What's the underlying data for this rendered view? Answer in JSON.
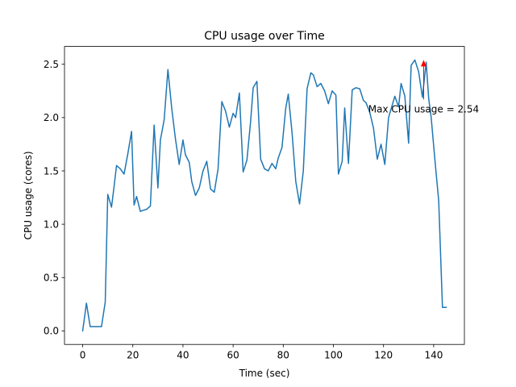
{
  "chart_data": {
    "type": "line",
    "title": "CPU usage over Time",
    "xlabel": "Time (sec)",
    "ylabel": "CPU usage (cores)",
    "xlim": [
      -7.25,
      152.25
    ],
    "ylim": [
      -0.127,
      2.667
    ],
    "xticks": [
      0,
      20,
      40,
      60,
      80,
      100,
      120,
      140
    ],
    "yticks": [
      0.0,
      0.5,
      1.0,
      1.5,
      2.0,
      2.5
    ],
    "xtick_labels": [
      "0",
      "20",
      "40",
      "60",
      "80",
      "100",
      "120",
      "140"
    ],
    "ytick_labels": [
      "0.0",
      "0.5",
      "1.0",
      "1.5",
      "2.0",
      "2.5"
    ],
    "grid": false,
    "series": [
      {
        "color": "#1f77b4",
        "x": [
          0,
          1.5,
          3,
          6,
          7.5,
          9,
          10,
          11.5,
          12.5,
          13.5,
          15,
          16.5,
          18,
          19.5,
          20.5,
          21.5,
          23,
          24,
          25.5,
          27,
          28.5,
          30,
          31,
          32.5,
          34,
          35.5,
          37,
          38.5,
          40,
          41,
          42.5,
          43.5,
          45,
          46.5,
          48,
          49.5,
          51,
          52.5,
          54,
          55.5,
          57,
          58.5,
          60,
          61,
          62.5,
          64,
          65.5,
          67,
          68,
          69.5,
          71,
          72.5,
          74,
          75.5,
          77,
          78,
          79.5,
          81,
          82,
          83.5,
          85,
          86.5,
          88,
          89.5,
          91,
          92,
          93.5,
          95,
          96.5,
          98,
          99.5,
          101,
          102,
          103.5,
          104.5,
          106,
          107.5,
          109,
          110.5,
          112,
          113,
          114.5,
          116,
          117.5,
          119,
          120.5,
          122,
          123,
          124.5,
          126,
          127,
          128.5,
          130,
          131,
          132.5,
          134,
          135.5,
          137,
          138,
          139,
          140.5,
          142,
          143.5,
          145
        ],
        "y": [
          0.0,
          0.26,
          0.04,
          0.04,
          0.04,
          0.27,
          1.28,
          1.16,
          1.35,
          1.55,
          1.52,
          1.47,
          1.66,
          1.87,
          1.18,
          1.26,
          1.12,
          1.13,
          1.14,
          1.17,
          1.93,
          1.34,
          1.79,
          1.98,
          2.45,
          2.09,
          1.8,
          1.56,
          1.79,
          1.65,
          1.58,
          1.4,
          1.27,
          1.34,
          1.5,
          1.59,
          1.33,
          1.3,
          1.52,
          2.15,
          2.06,
          1.91,
          2.04,
          2.0,
          2.23,
          1.49,
          1.6,
          1.97,
          2.28,
          2.34,
          1.61,
          1.52,
          1.5,
          1.57,
          1.52,
          1.62,
          1.72,
          2.09,
          2.22,
          1.86,
          1.4,
          1.19,
          1.5,
          2.27,
          2.42,
          2.4,
          2.29,
          2.32,
          2.25,
          2.13,
          2.25,
          2.21,
          1.47,
          1.59,
          2.09,
          1.57,
          2.26,
          2.28,
          2.27,
          2.16,
          2.14,
          2.05,
          1.9,
          1.61,
          1.75,
          1.56,
          2.0,
          2.08,
          2.2,
          2.1,
          2.32,
          2.2,
          1.76,
          2.49,
          2.54,
          2.43,
          2.19,
          2.52,
          2.18,
          2.0,
          1.6,
          1.22,
          0.22,
          0.22
        ]
      }
    ],
    "annotation": {
      "text": "Max CPU usage = 2.54",
      "color": "#ff0000",
      "point": [
        136,
        2.54
      ],
      "text_pos": [
        136,
        2.17
      ]
    }
  }
}
